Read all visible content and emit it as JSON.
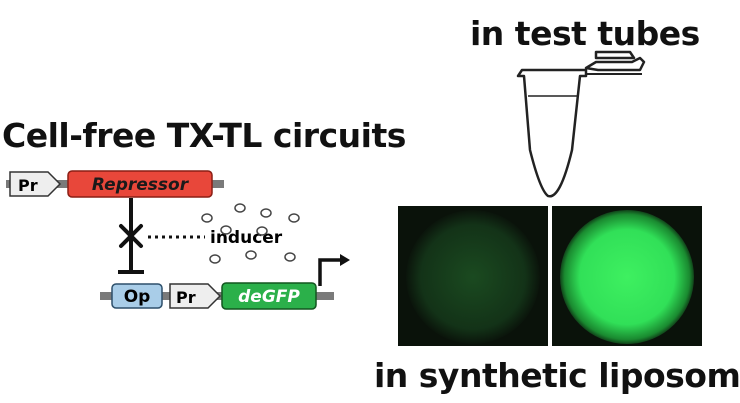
{
  "titles": {
    "cellfree": "Cell-free TX-TL circuits",
    "tubes": "in test tubes",
    "liposomes": "in synthetic liposomes"
  },
  "circuit": {
    "promoter_top": "Pr",
    "repressor": "Repressor",
    "inducer": "inducer",
    "operator": "Op",
    "promoter_bottom": "Pr",
    "reporter": "deGFP"
  },
  "colors": {
    "repressor": "#e8473a",
    "operator": "#a9cde8",
    "reporter": "#2bb04a",
    "promoter": "#eeeeee",
    "gfp_bright": "#3ef060"
  },
  "icons": [
    "test-tube-icon",
    "transcription-arrow-icon",
    "repression-x-icon"
  ]
}
